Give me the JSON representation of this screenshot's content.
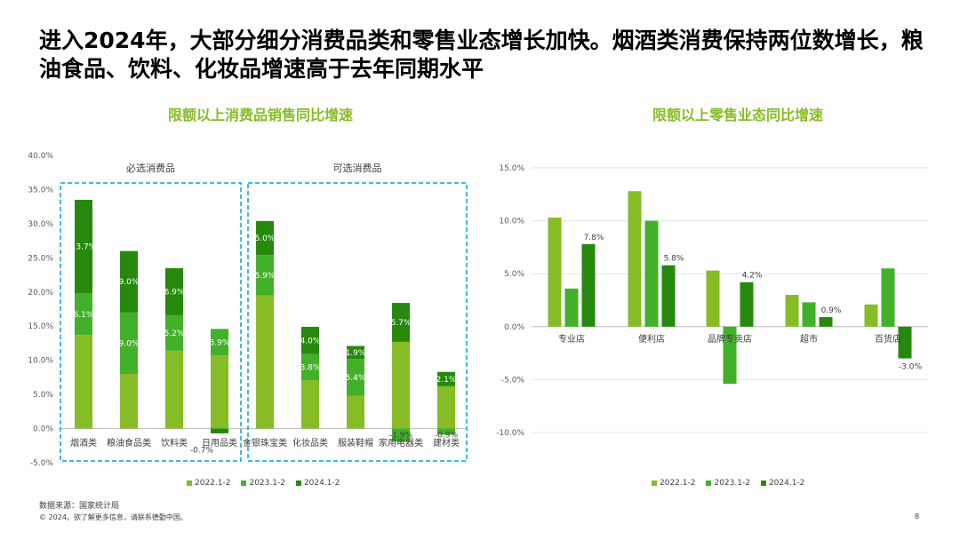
{
  "headline": "进入2024年，大部分细分消费品类和零售业态增长加快。烟酒类消费保持两位数增长，粮油食品、饮料、化妆品增速高于去年同期水平",
  "source": "数据来源：国家统计局",
  "copyright": "© 2024。欲了解更多信息，请联系德勤中国。",
  "page_number": "8",
  "colors": {
    "s2022": "#86bc25",
    "s2023": "#43b02a",
    "s2024": "#26890d",
    "box": "#00a3e0"
  },
  "chart_data": [
    {
      "type": "bar",
      "stacked": true,
      "title": "限额以上消费品销售同比增速",
      "yticks": [
        "40.0%",
        "35.0%",
        "30.0%",
        "25.0%",
        "20.0%",
        "15.0%",
        "10.0%",
        "5.0%",
        "0.0%",
        "-5.0%"
      ],
      "ylim": [
        -5,
        40
      ],
      "groups": [
        {
          "label": "必选消费品",
          "start": 0,
          "end": 3
        },
        {
          "label": "可选消费品",
          "start": 4,
          "end": 8
        }
      ],
      "categories": [
        "烟酒类",
        "粮油食品类",
        "饮料类",
        "日用品类",
        "金银珠宝类",
        "化妆品类",
        "服装鞋帽",
        "家用电器类",
        "建材类"
      ],
      "series": [
        {
          "name": "2022.1-2",
          "values": [
            13.7,
            8.0,
            11.4,
            10.7,
            19.5,
            7.1,
            4.8,
            12.7,
            6.2
          ]
        },
        {
          "name": "2023.1-2",
          "values": [
            6.1,
            9.0,
            5.2,
            3.9,
            5.9,
            3.8,
            5.4,
            -1.9,
            -0.9
          ]
        },
        {
          "name": "2024.1-2",
          "values": [
            13.7,
            9.0,
            6.9,
            -0.7,
            5.0,
            4.0,
            1.9,
            5.7,
            2.1
          ]
        }
      ],
      "labels": {
        "2023.1-2": [
          "6.1%",
          "9.0%",
          "5.2%",
          "3.9%",
          "5.9%",
          "3.8%",
          "5.4%",
          "-1.9%",
          "-0.9%"
        ],
        "2024.1-2": [
          "13.7%",
          "9.0%",
          "6.9%",
          "-0.7%",
          "5.0%",
          "4.0%",
          "1.9%",
          "5.7%",
          "2.1%"
        ]
      },
      "legend": [
        "2022.1-2",
        "2023.1-2",
        "2024.1-2"
      ]
    },
    {
      "type": "bar",
      "title": "限额以上零售业态同比增速",
      "yticks": [
        "15.0%",
        "10.0%",
        "5.0%",
        "0.0%",
        "-5.0%",
        "-10.0%"
      ],
      "ylim": [
        -10,
        15
      ],
      "categories": [
        "专业店",
        "便利店",
        "品牌专卖店",
        "超市",
        "百货店"
      ],
      "series": [
        {
          "name": "2022.1-2",
          "values": [
            10.3,
            12.8,
            5.3,
            3.0,
            2.1
          ]
        },
        {
          "name": "2023.1-2",
          "values": [
            3.6,
            10.0,
            -5.4,
            2.3,
            5.5
          ]
        },
        {
          "name": "2024.1-2",
          "values": [
            7.8,
            5.8,
            4.2,
            0.9,
            -3.0
          ]
        }
      ],
      "labels": {
        "2024.1-2": [
          "7.8%",
          "5.8%",
          "4.2%",
          "0.9%",
          "-3.0%"
        ]
      },
      "legend": [
        "2022.1-2",
        "2023.1-2",
        "2024.1-2"
      ]
    }
  ]
}
